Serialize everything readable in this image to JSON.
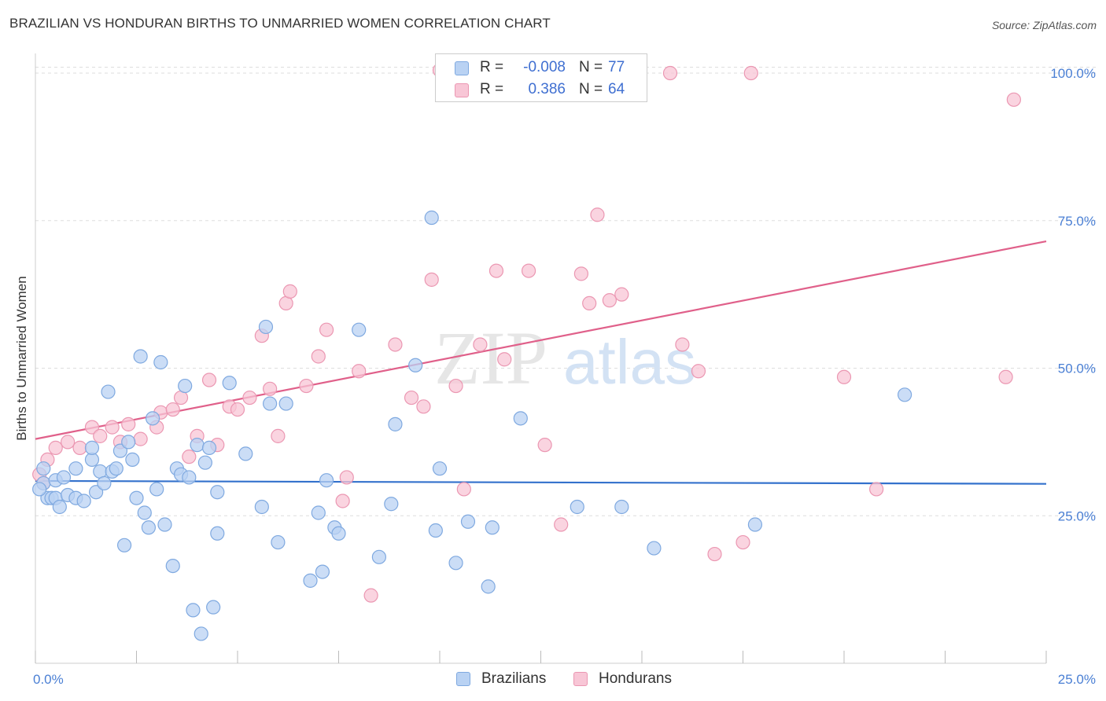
{
  "title": "BRAZILIAN VS HONDURAN BIRTHS TO UNMARRIED WOMEN CORRELATION CHART",
  "source": "Source: ZipAtlas.com",
  "watermark": {
    "zip": "ZIP",
    "atlas": "atlas"
  },
  "legend": {
    "rows": [
      {
        "r_label": "R =",
        "r_value": "-0.008",
        "n_label": "N =",
        "n_value": "77"
      },
      {
        "r_label": "R =",
        "r_value": "0.386",
        "n_label": "N =",
        "n_value": "64"
      }
    ]
  },
  "bottom_legend": [
    "Brazilians",
    "Hondurans"
  ],
  "colors": {
    "brazilians_fill": "#b9d2f3",
    "brazilians_stroke": "#7fa9e0",
    "brazilians_line": "#3371cc",
    "hondurans_fill": "#f8c6d6",
    "hondurans_stroke": "#eb97b2",
    "hondurans_line": "#e0608a",
    "tick_text": "#4a7fd4",
    "grid": "#dddddd"
  },
  "chart_data": {
    "type": "scatter",
    "title": "BRAZILIAN VS HONDURAN BIRTHS TO UNMARRIED WOMEN CORRELATION CHART",
    "xlabel": "",
    "ylabel": "Births to Unmarried Women",
    "xlim": [
      0,
      25
    ],
    "ylim": [
      0,
      102
    ],
    "x_tick_labels": [
      "0.0%",
      "25.0%"
    ],
    "y_ticks": [
      25,
      50,
      75,
      100
    ],
    "y_tick_labels": [
      "25.0%",
      "50.0%",
      "75.0%",
      "100.0%"
    ],
    "series": [
      {
        "name": "Brazilians",
        "r": -0.008,
        "n": 77,
        "trend": {
          "x": [
            0,
            25
          ],
          "y": [
            30.9,
            30.4
          ]
        },
        "points": [
          [
            0.2,
            33.0
          ],
          [
            0.2,
            30.5
          ],
          [
            0.3,
            28.0
          ],
          [
            0.4,
            28.0
          ],
          [
            0.5,
            31.0
          ],
          [
            0.5,
            28.0
          ],
          [
            0.6,
            26.5
          ],
          [
            0.7,
            31.5
          ],
          [
            0.8,
            28.5
          ],
          [
            1.0,
            28.0
          ],
          [
            1.0,
            33.0
          ],
          [
            1.2,
            27.5
          ],
          [
            1.4,
            34.5
          ],
          [
            1.4,
            36.5
          ],
          [
            1.5,
            29.0
          ],
          [
            1.6,
            32.5
          ],
          [
            1.7,
            30.5
          ],
          [
            1.8,
            46.0
          ],
          [
            1.9,
            32.5
          ],
          [
            2.0,
            33.0
          ],
          [
            2.1,
            36.0
          ],
          [
            2.2,
            20.0
          ],
          [
            2.3,
            37.5
          ],
          [
            2.4,
            34.5
          ],
          [
            2.5,
            28.0
          ],
          [
            2.6,
            52.0
          ],
          [
            2.7,
            25.5
          ],
          [
            2.8,
            23.0
          ],
          [
            2.9,
            41.5
          ],
          [
            3.0,
            29.5
          ],
          [
            3.1,
            51.0
          ],
          [
            3.2,
            23.5
          ],
          [
            3.4,
            16.5
          ],
          [
            3.5,
            33.0
          ],
          [
            3.6,
            32.0
          ],
          [
            3.7,
            47.0
          ],
          [
            3.8,
            31.5
          ],
          [
            3.9,
            9.0
          ],
          [
            4.0,
            37.0
          ],
          [
            4.1,
            5.0
          ],
          [
            4.2,
            34.0
          ],
          [
            4.3,
            36.5
          ],
          [
            4.4,
            9.5
          ],
          [
            4.5,
            29.0
          ],
          [
            4.5,
            22.0
          ],
          [
            4.8,
            47.5
          ],
          [
            5.2,
            35.5
          ],
          [
            5.6,
            26.5
          ],
          [
            5.7,
            57.0
          ],
          [
            5.8,
            44.0
          ],
          [
            6.0,
            20.5
          ],
          [
            6.2,
            44.0
          ],
          [
            6.8,
            14.0
          ],
          [
            7.0,
            25.5
          ],
          [
            7.1,
            15.5
          ],
          [
            7.2,
            31.0
          ],
          [
            7.4,
            23.0
          ],
          [
            7.5,
            22.0
          ],
          [
            8.0,
            56.5
          ],
          [
            8.5,
            18.0
          ],
          [
            8.8,
            27.0
          ],
          [
            8.9,
            40.5
          ],
          [
            9.4,
            50.5
          ],
          [
            9.8,
            75.5
          ],
          [
            9.9,
            22.5
          ],
          [
            10.0,
            33.0
          ],
          [
            10.4,
            17.0
          ],
          [
            10.7,
            24.0
          ],
          [
            11.2,
            13.0
          ],
          [
            11.3,
            23.0
          ],
          [
            12.0,
            41.5
          ],
          [
            13.4,
            26.5
          ],
          [
            14.5,
            26.5
          ],
          [
            15.3,
            19.5
          ],
          [
            17.8,
            23.5
          ],
          [
            21.5,
            45.5
          ],
          [
            0.1,
            29.5
          ]
        ]
      },
      {
        "name": "Hondurans",
        "r": 0.386,
        "n": 64,
        "trend": {
          "x": [
            0,
            25
          ],
          "y": [
            38.0,
            71.5
          ]
        },
        "points": [
          [
            0.1,
            32.0
          ],
          [
            0.2,
            30.5
          ],
          [
            0.3,
            34.5
          ],
          [
            0.5,
            36.5
          ],
          [
            0.8,
            37.5
          ],
          [
            1.1,
            36.5
          ],
          [
            1.4,
            40.0
          ],
          [
            1.6,
            38.5
          ],
          [
            1.9,
            40.0
          ],
          [
            2.1,
            37.5
          ],
          [
            2.3,
            40.5
          ],
          [
            2.6,
            38.0
          ],
          [
            3.0,
            40.0
          ],
          [
            3.1,
            42.5
          ],
          [
            3.4,
            43.0
          ],
          [
            3.6,
            45.0
          ],
          [
            3.8,
            35.0
          ],
          [
            4.0,
            38.5
          ],
          [
            4.3,
            48.0
          ],
          [
            4.5,
            37.0
          ],
          [
            4.8,
            43.5
          ],
          [
            5.0,
            43.0
          ],
          [
            5.3,
            45.0
          ],
          [
            5.6,
            55.5
          ],
          [
            5.8,
            46.5
          ],
          [
            6.0,
            38.5
          ],
          [
            6.2,
            61.0
          ],
          [
            6.3,
            63.0
          ],
          [
            6.7,
            47.0
          ],
          [
            7.0,
            52.0
          ],
          [
            7.2,
            56.5
          ],
          [
            7.6,
            27.5
          ],
          [
            7.7,
            31.5
          ],
          [
            8.0,
            49.5
          ],
          [
            8.3,
            11.5
          ],
          [
            8.9,
            54.0
          ],
          [
            9.3,
            45.0
          ],
          [
            9.6,
            43.5
          ],
          [
            9.8,
            65.0
          ],
          [
            10.0,
            100.5
          ],
          [
            10.4,
            47.0
          ],
          [
            10.6,
            29.5
          ],
          [
            11.0,
            54.0
          ],
          [
            11.4,
            66.5
          ],
          [
            11.6,
            51.5
          ],
          [
            12.0,
            100.0
          ],
          [
            12.2,
            66.5
          ],
          [
            12.6,
            37.0
          ],
          [
            13.0,
            23.5
          ],
          [
            13.5,
            66.0
          ],
          [
            13.7,
            61.0
          ],
          [
            13.9,
            76.0
          ],
          [
            14.2,
            61.5
          ],
          [
            14.5,
            62.5
          ],
          [
            15.7,
            100.0
          ],
          [
            16.0,
            54.0
          ],
          [
            16.4,
            49.5
          ],
          [
            16.8,
            18.5
          ],
          [
            17.5,
            20.5
          ],
          [
            17.7,
            100.0
          ],
          [
            20.0,
            48.5
          ],
          [
            20.8,
            29.5
          ],
          [
            24.0,
            48.5
          ],
          [
            24.2,
            95.5
          ]
        ]
      }
    ]
  }
}
